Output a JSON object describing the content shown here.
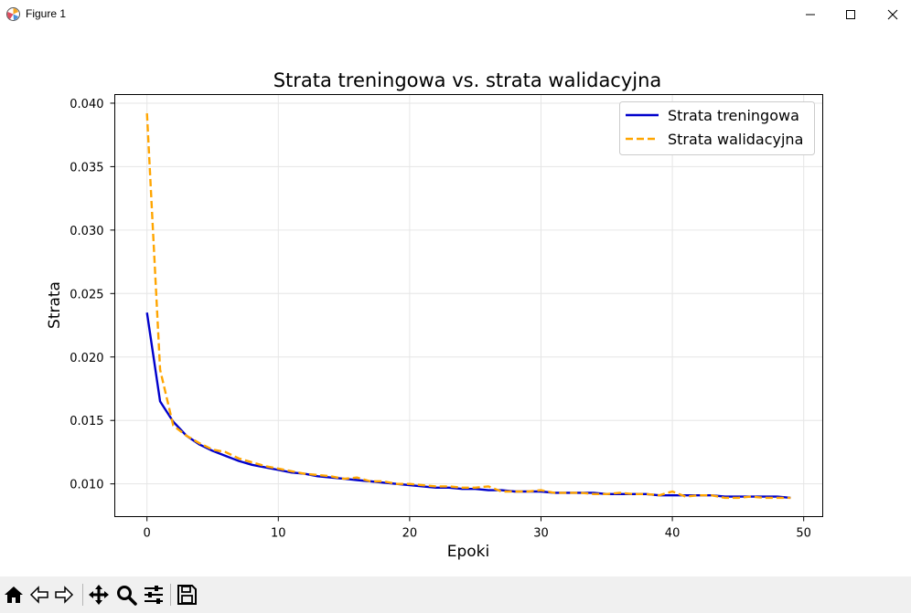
{
  "window": {
    "title": "Figure 1"
  },
  "toolbar": {
    "buttons": [
      {
        "name": "home-icon"
      },
      {
        "name": "back-arrow-icon"
      },
      {
        "name": "forward-arrow-icon"
      },
      {
        "name": "pan-icon"
      },
      {
        "name": "zoom-icon"
      },
      {
        "name": "configure-subplots-icon"
      },
      {
        "name": "save-icon"
      }
    ]
  },
  "colors": {
    "train": "#0000cc",
    "val": "#ffa500",
    "toolbar_bg": "#f0f0f0"
  },
  "chart_data": {
    "type": "line",
    "title": "Strata treningowa vs. strata walidacyjna",
    "xlabel": "Epoki",
    "ylabel": "Strata",
    "xlim": [
      -2.45,
      51.45
    ],
    "ylim": [
      0.00742,
      0.04068
    ],
    "xticks": [
      0,
      10,
      20,
      30,
      40,
      50
    ],
    "xtick_labels": [
      "0",
      "10",
      "20",
      "30",
      "40",
      "50"
    ],
    "yticks": [
      0.01,
      0.015,
      0.02,
      0.025,
      0.03,
      0.035,
      0.04
    ],
    "ytick_labels": [
      "0.010",
      "0.015",
      "0.020",
      "0.025",
      "0.030",
      "0.035",
      "0.040"
    ],
    "grid": true,
    "legend_position": "top-right",
    "series": [
      {
        "name": "Strata treningowa",
        "style": "solid",
        "color": "#0000cc",
        "x": [
          0,
          1,
          2,
          3,
          4,
          5,
          6,
          7,
          8,
          9,
          10,
          11,
          12,
          13,
          14,
          15,
          16,
          17,
          18,
          19,
          20,
          21,
          22,
          23,
          24,
          25,
          26,
          27,
          28,
          29,
          30,
          31,
          32,
          33,
          34,
          35,
          36,
          37,
          38,
          39,
          40,
          41,
          42,
          43,
          44,
          45,
          46,
          47,
          48,
          49
        ],
        "values": [
          0.0235,
          0.0165,
          0.0149,
          0.0138,
          0.0131,
          0.0126,
          0.0122,
          0.0118,
          0.0115,
          0.0113,
          0.0111,
          0.0109,
          0.0108,
          0.0106,
          0.0105,
          0.0104,
          0.0103,
          0.0102,
          0.0101,
          0.01,
          0.0099,
          0.0098,
          0.0097,
          0.0097,
          0.0096,
          0.0096,
          0.0095,
          0.0095,
          0.0094,
          0.0094,
          0.0094,
          0.0093,
          0.0093,
          0.0093,
          0.0093,
          0.0092,
          0.0092,
          0.0092,
          0.0092,
          0.0091,
          0.0091,
          0.0091,
          0.0091,
          0.0091,
          0.009,
          0.009,
          0.009,
          0.009,
          0.009,
          0.0089
        ]
      },
      {
        "name": "Strata walidacyjna",
        "style": "dashed",
        "color": "#ffa500",
        "x": [
          0,
          1,
          2,
          3,
          4,
          5,
          6,
          7,
          8,
          9,
          10,
          11,
          12,
          13,
          14,
          15,
          16,
          17,
          18,
          19,
          20,
          21,
          22,
          23,
          24,
          25,
          26,
          27,
          28,
          29,
          30,
          31,
          32,
          33,
          34,
          35,
          36,
          37,
          38,
          39,
          40,
          41,
          42,
          43,
          44,
          45,
          46,
          47,
          48,
          49
        ],
        "values": [
          0.0392,
          0.019,
          0.0146,
          0.0138,
          0.0132,
          0.0127,
          0.0125,
          0.012,
          0.0117,
          0.0114,
          0.0112,
          0.011,
          0.0108,
          0.0107,
          0.0106,
          0.0104,
          0.0105,
          0.0102,
          0.0102,
          0.01,
          0.01,
          0.0099,
          0.0098,
          0.0098,
          0.0097,
          0.0097,
          0.0098,
          0.0094,
          0.0094,
          0.0094,
          0.0095,
          0.0093,
          0.0093,
          0.0093,
          0.0092,
          0.0092,
          0.0093,
          0.0092,
          0.0092,
          0.0091,
          0.0094,
          0.009,
          0.0091,
          0.0091,
          0.0089,
          0.0089,
          0.009,
          0.0089,
          0.0089,
          0.0089
        ]
      }
    ]
  }
}
